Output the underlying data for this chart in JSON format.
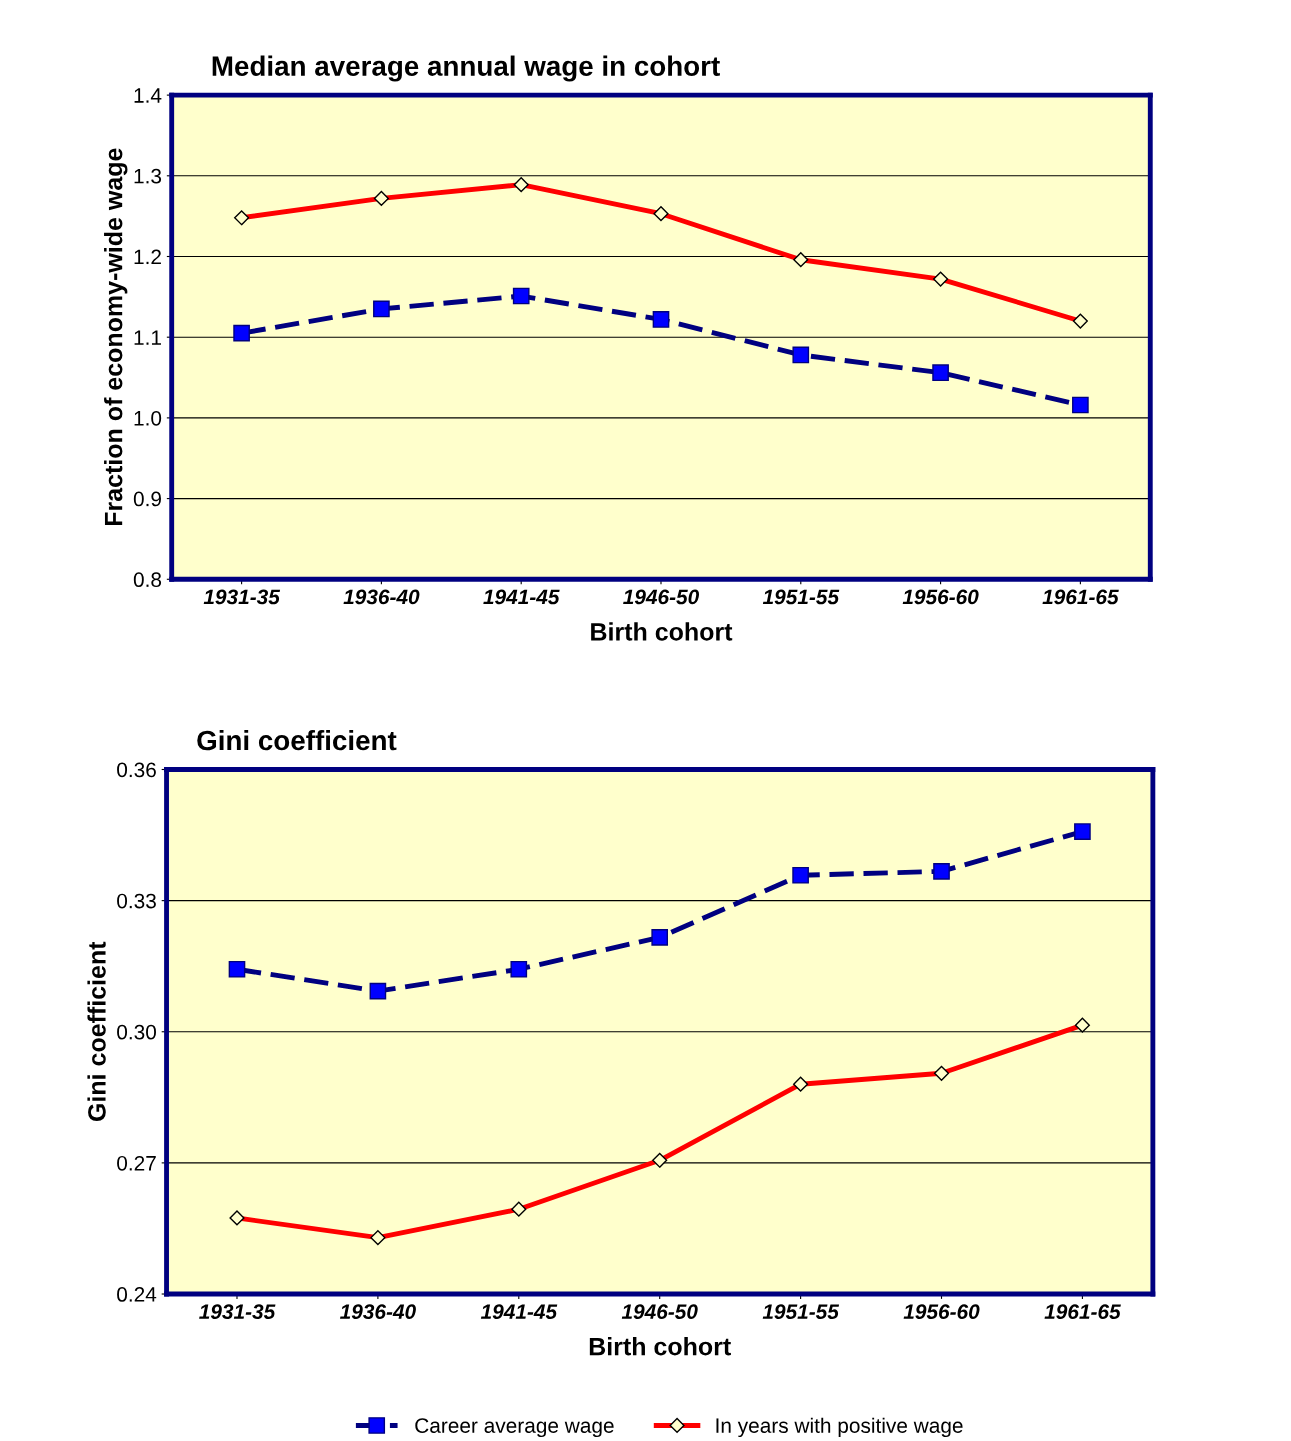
{
  "chart_data": [
    {
      "type": "line",
      "title": "Median average annual wage in cohort",
      "xlabel": "Birth cohort",
      "ylabel": "Fraction of economy-wide wage",
      "categories": [
        "1931-35",
        "1936-40",
        "1941-45",
        "1946-50",
        "1951-55",
        "1956-60",
        "1961-65"
      ],
      "ylim": [
        0.8,
        1.4
      ],
      "yticks": [
        {
          "value": 0.8,
          "label": "0.8"
        },
        {
          "value": 0.9,
          "label": "0.9"
        },
        {
          "value": 1.0,
          "label": "1.0"
        },
        {
          "value": 1.1,
          "label": "1.1"
        },
        {
          "value": 1.2,
          "label": "1.2"
        },
        {
          "value": 1.3,
          "label": "1.3"
        },
        {
          "value": 1.4,
          "label": "1.4"
        }
      ],
      "grid": "y",
      "legend": false,
      "series": [
        {
          "color": "#000080",
          "line_style": "dashed",
          "marker": "square",
          "values": [
            1.105,
            1.135,
            1.151,
            1.122,
            1.078,
            1.056,
            1.016
          ]
        },
        {
          "color": "#ff0000",
          "line_style": "solid",
          "marker": "diamond",
          "values": [
            1.248,
            1.272,
            1.289,
            1.253,
            1.196,
            1.172,
            1.12
          ]
        }
      ]
    },
    {
      "type": "line",
      "title": "Gini coefficient",
      "xlabel": "Birth cohort",
      "ylabel": "Gini coefficient",
      "categories": [
        "1931-35",
        "1936-40",
        "1941-45",
        "1946-50",
        "1951-55",
        "1956-60",
        "1961-65"
      ],
      "ylim": [
        0.24,
        0.36
      ],
      "yticks": [
        {
          "value": 0.24,
          "label": "0.24"
        },
        {
          "value": 0.27,
          "label": "0.27"
        },
        {
          "value": 0.3,
          "label": "0.30"
        },
        {
          "value": 0.33,
          "label": "0.33"
        },
        {
          "value": 0.36,
          "label": "0.36"
        }
      ],
      "grid": "y",
      "legend": "bottom",
      "series": [
        {
          "name": "Career average wage",
          "color": "#000080",
          "line_style": "dashed",
          "marker": "square",
          "values": [
            0.3143,
            0.3093,
            0.3143,
            0.3216,
            0.3358,
            0.3367,
            0.3458
          ]
        },
        {
          "name": "In years with positive wage",
          "color": "#ff0000",
          "line_style": "solid",
          "marker": "diamond",
          "values": [
            0.2574,
            0.2529,
            0.2594,
            0.2706,
            0.288,
            0.2905,
            0.3015
          ]
        }
      ]
    }
  ]
}
